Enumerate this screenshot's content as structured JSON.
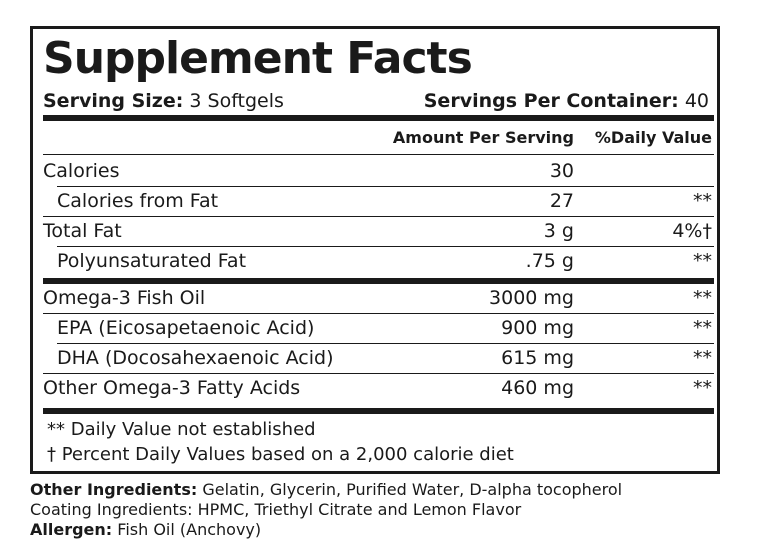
{
  "title": "Supplement Facts",
  "serving": {
    "size_label": "Serving Size:",
    "size_value": "3 Softgels",
    "per_container_label": "Servings Per Container:",
    "per_container_value": "40"
  },
  "headers": {
    "amount": "Amount Per Serving",
    "dv": "%Daily Value"
  },
  "rows": [
    {
      "name": "Calories",
      "amount": "30",
      "dv": ""
    },
    {
      "name": "Calories from Fat",
      "amount": "27",
      "dv": "**"
    },
    {
      "name": "Total Fat",
      "amount": "3 g",
      "dv": "4%†"
    },
    {
      "name": "Polyunsaturated Fat",
      "amount": ".75 g",
      "dv": "**"
    },
    {
      "name": "Omega-3 Fish Oil",
      "amount": "3000 mg",
      "dv": "**"
    },
    {
      "name": "EPA (Eicosapetaenoic Acid)",
      "amount": "900 mg",
      "dv": "**"
    },
    {
      "name": "DHA (Docosahexaenoic Acid)",
      "amount": "615 mg",
      "dv": "**"
    },
    {
      "name": "Other Omega-3 Fatty Acids",
      "amount": "460 mg",
      "dv": "**"
    }
  ],
  "footnotes": {
    "double_star": "** Daily Value not established",
    "dagger": "† Percent Daily Values based on a 2,000 calorie diet"
  },
  "other_ingredients": {
    "label": "Other Ingredients:",
    "value": "Gelatin, Glycerin, Purified Water, D-alpha tocopherol"
  },
  "coating": "Coating Ingredients: HPMC, Triethyl Citrate and Lemon Flavor",
  "allergen": {
    "label": "Allergen:",
    "value": "Fish Oil (Anchovy)"
  }
}
